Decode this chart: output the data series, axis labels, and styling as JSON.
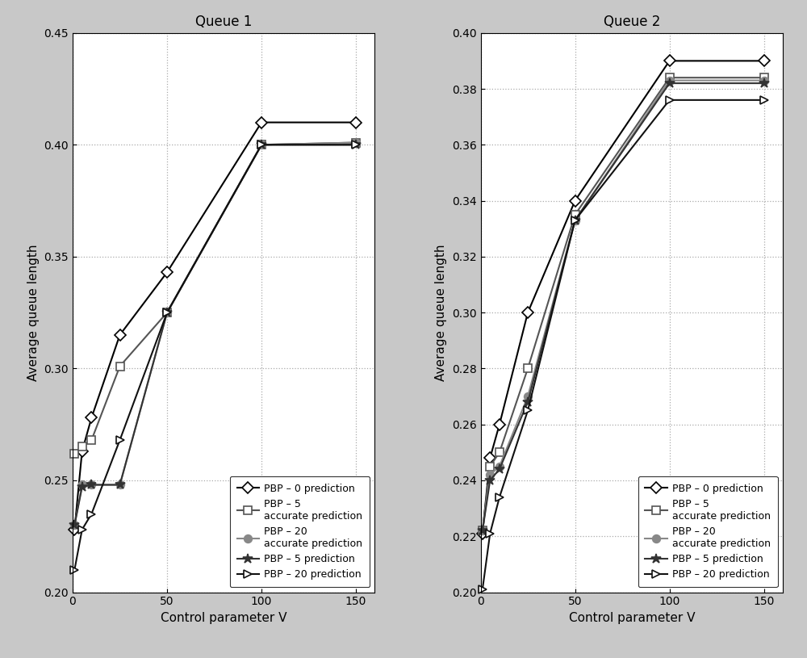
{
  "queue1": {
    "title": "Queue 1",
    "xlim": [
      0,
      160
    ],
    "ylim": [
      0.2,
      0.45
    ],
    "yticks": [
      0.2,
      0.25,
      0.3,
      0.35,
      0.4,
      0.45
    ],
    "xticks": [
      0,
      50,
      100,
      150
    ],
    "series": [
      {
        "label": "PBP – 0 prediction",
        "color": "#000000",
        "linestyle": "-",
        "marker": "D",
        "markersize": 7,
        "linewidth": 1.5,
        "markerfacecolor": "white",
        "x": [
          1,
          5,
          10,
          25,
          50,
          100,
          150
        ],
        "y": [
          0.228,
          0.263,
          0.278,
          0.315,
          0.343,
          0.41,
          0.41
        ]
      },
      {
        "label": "PBP – 5\naccurate prediction",
        "color": "#555555",
        "linestyle": "-",
        "marker": "s",
        "markersize": 7,
        "linewidth": 1.5,
        "markerfacecolor": "white",
        "x": [
          1,
          5,
          10,
          25,
          50,
          100,
          150
        ],
        "y": [
          0.262,
          0.265,
          0.268,
          0.301,
          0.325,
          0.4,
          0.401
        ]
      },
      {
        "label": "PBP – 20\naccurate prediction",
        "color": "#888888",
        "linestyle": "-",
        "marker": "o",
        "markersize": 7,
        "linewidth": 1.5,
        "markerfacecolor": "#888888",
        "x": [
          1,
          5,
          10,
          25,
          50,
          100,
          150
        ],
        "y": [
          0.23,
          0.248,
          0.248,
          0.248,
          0.325,
          0.4,
          0.401
        ]
      },
      {
        "label": "PBP – 5 prediction",
        "color": "#333333",
        "linestyle": "-",
        "marker": "*",
        "markersize": 9,
        "linewidth": 1.5,
        "markerfacecolor": "#333333",
        "x": [
          1,
          5,
          10,
          25,
          50,
          100,
          150
        ],
        "y": [
          0.23,
          0.247,
          0.248,
          0.248,
          0.325,
          0.4,
          0.4
        ]
      },
      {
        "label": "PBP – 20 prediction",
        "color": "#111111",
        "linestyle": "-",
        "marker": ">",
        "markersize": 7,
        "linewidth": 1.5,
        "markerfacecolor": "white",
        "x": [
          1,
          5,
          10,
          25,
          50,
          100,
          150
        ],
        "y": [
          0.21,
          0.228,
          0.235,
          0.268,
          0.325,
          0.4,
          0.4
        ]
      }
    ]
  },
  "queue2": {
    "title": "Queue 2",
    "xlim": [
      0,
      160
    ],
    "ylim": [
      0.2,
      0.4
    ],
    "yticks": [
      0.2,
      0.22,
      0.24,
      0.26,
      0.28,
      0.3,
      0.32,
      0.34,
      0.36,
      0.38,
      0.4
    ],
    "xticks": [
      0,
      50,
      100,
      150
    ],
    "series": [
      {
        "label": "PBP – 0 prediction",
        "color": "#000000",
        "linestyle": "-",
        "marker": "D",
        "markersize": 7,
        "linewidth": 1.5,
        "markerfacecolor": "white",
        "x": [
          1,
          5,
          10,
          25,
          50,
          100,
          150
        ],
        "y": [
          0.221,
          0.248,
          0.26,
          0.3,
          0.34,
          0.39,
          0.39
        ]
      },
      {
        "label": "PBP – 5\naccurate prediction",
        "color": "#555555",
        "linestyle": "-",
        "marker": "s",
        "markersize": 7,
        "linewidth": 1.5,
        "markerfacecolor": "white",
        "x": [
          1,
          5,
          10,
          25,
          50,
          100,
          150
        ],
        "y": [
          0.222,
          0.245,
          0.25,
          0.28,
          0.335,
          0.384,
          0.384
        ]
      },
      {
        "label": "PBP – 20\naccurate prediction",
        "color": "#888888",
        "linestyle": "-",
        "marker": "o",
        "markersize": 7,
        "linewidth": 1.5,
        "markerfacecolor": "#888888",
        "x": [
          1,
          5,
          10,
          25,
          50,
          100,
          150
        ],
        "y": [
          0.222,
          0.242,
          0.245,
          0.27,
          0.333,
          0.383,
          0.383
        ]
      },
      {
        "label": "PBP – 5 prediction",
        "color": "#333333",
        "linestyle": "-",
        "marker": "*",
        "markersize": 9,
        "linewidth": 1.5,
        "markerfacecolor": "#333333",
        "x": [
          1,
          5,
          10,
          25,
          50,
          100,
          150
        ],
        "y": [
          0.222,
          0.24,
          0.244,
          0.268,
          0.333,
          0.382,
          0.382
        ]
      },
      {
        "label": "PBP – 20 prediction",
        "color": "#111111",
        "linestyle": "-",
        "marker": ">",
        "markersize": 7,
        "linewidth": 1.5,
        "markerfacecolor": "white",
        "x": [
          1,
          5,
          10,
          25,
          50,
          100,
          150
        ],
        "y": [
          0.201,
          0.221,
          0.234,
          0.265,
          0.333,
          0.376,
          0.376
        ]
      }
    ]
  },
  "xlabel": "Control parameter V",
  "ylabel": "Average queue length",
  "plot_bg": "#ffffff",
  "figure_bg": "#c8c8c8",
  "border_color": "#000000"
}
